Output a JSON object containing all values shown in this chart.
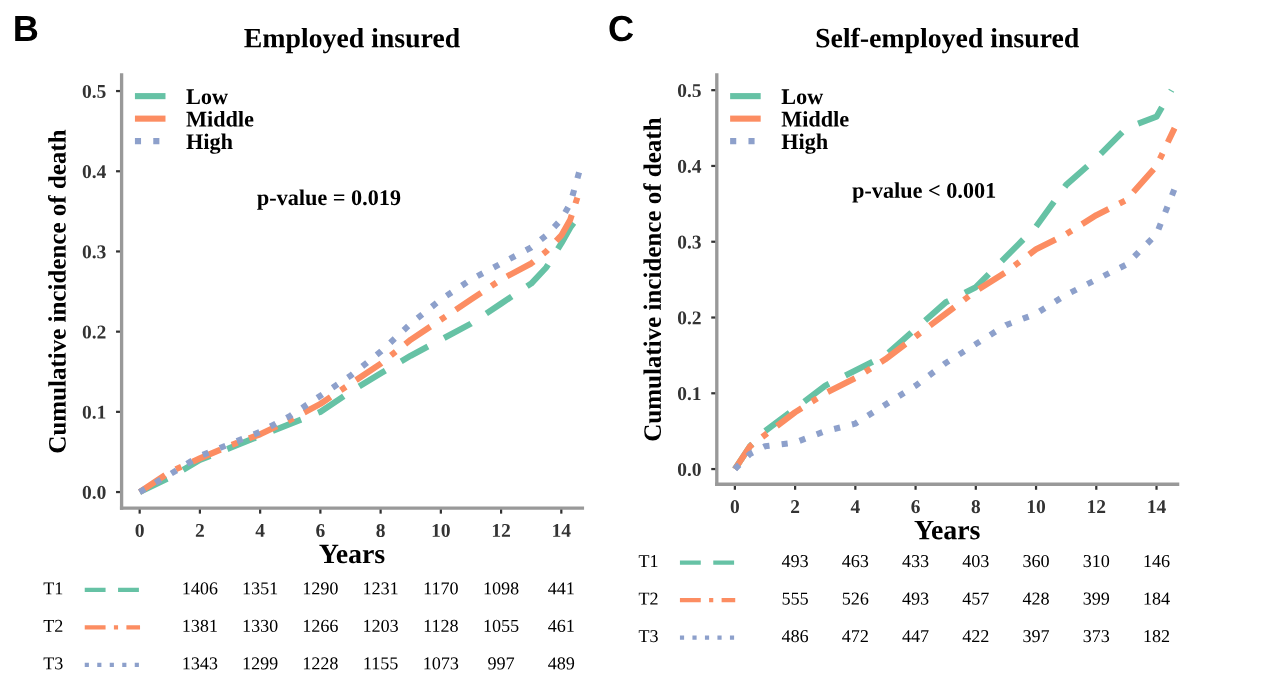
{
  "chart_data": [
    {
      "type": "line",
      "title": "Employed insured",
      "xlabel": "Years",
      "ylabel": "Cumulative incidence of death",
      "annotations": [
        "B",
        "p-value = 0.019",
        "T1",
        "1406",
        "1351",
        "1290",
        "1231",
        "1170",
        "1098",
        "441",
        "T2",
        "1381",
        "1330",
        "1266",
        "1203",
        "1128",
        "1055",
        "461",
        "T3",
        "1343",
        "1299",
        "1228",
        "1155",
        "1073",
        "997",
        "489"
      ],
      "x": [
        0,
        1,
        2,
        3,
        4,
        5,
        6,
        7,
        8,
        9,
        10,
        11,
        12,
        13,
        13.5,
        14,
        14.3,
        14.6
      ],
      "series": [
        {
          "name": "Low",
          "color": "#66c2a5",
          "line_style": "dashed",
          "values": [
            0,
            0.018,
            0.04,
            0.055,
            0.07,
            0.085,
            0.1,
            0.125,
            0.148,
            0.17,
            0.19,
            0.21,
            0.235,
            0.26,
            0.28,
            0.31,
            0.33,
            0.345
          ]
        },
        {
          "name": "Middle",
          "color": "#fc8d62",
          "line_style": "dashdot",
          "values": [
            0,
            0.025,
            0.042,
            0.058,
            0.072,
            0.09,
            0.11,
            0.135,
            0.16,
            0.19,
            0.215,
            0.24,
            0.265,
            0.285,
            0.3,
            0.32,
            0.34,
            0.375
          ]
        },
        {
          "name": "High",
          "color": "#8da0cb",
          "line_style": "dotted",
          "values": [
            0,
            0.022,
            0.045,
            0.06,
            0.075,
            0.095,
            0.12,
            0.145,
            0.175,
            0.21,
            0.24,
            0.265,
            0.285,
            0.305,
            0.32,
            0.34,
            0.36,
            0.4
          ]
        }
      ],
      "xlim": [
        -0.6,
        14.7
      ],
      "xticks": [
        0,
        2,
        4,
        6,
        8,
        10,
        12,
        14
      ],
      "ylim": [
        -0.02,
        0.52
      ],
      "yticks": [
        {
          "value": 0,
          "label": "0.0"
        },
        0.1,
        0.2,
        0.3,
        0.4,
        0.5
      ],
      "grid": false,
      "legend": "top left",
      "marker": "none"
    },
    {
      "type": "line",
      "title": "Self-employed insured",
      "xlabel": "Years",
      "ylabel": "Cumulative incidence of death",
      "annotations": [
        "C",
        "p-value < 0.001",
        "T1",
        "493",
        "463",
        "433",
        "403",
        "360",
        "310",
        "146",
        "T2",
        "555",
        "526",
        "493",
        "457",
        "428",
        "399",
        "184",
        "T3",
        "486",
        "472",
        "447",
        "422",
        "397",
        "373",
        "182"
      ],
      "x": [
        0,
        0.5,
        1,
        2,
        3,
        4,
        5,
        6,
        7,
        8,
        9,
        10,
        11,
        12,
        13,
        14,
        14.5
      ],
      "series": [
        {
          "name": "Low",
          "color": "#66c2a5",
          "line_style": "dashed",
          "values": [
            0,
            0.03,
            0.05,
            0.08,
            0.11,
            0.13,
            0.15,
            0.185,
            0.22,
            0.24,
            0.28,
            0.32,
            0.375,
            0.41,
            0.45,
            0.465,
            0.5
          ]
        },
        {
          "name": "Middle",
          "color": "#fc8d62",
          "line_style": "dashdot",
          "x": [
            0,
            0.5,
            1,
            2,
            3,
            4,
            5,
            6,
            7,
            8,
            9,
            10,
            11,
            12,
            13,
            14,
            14.6
          ],
          "values": [
            0,
            0.03,
            0.045,
            0.075,
            0.1,
            0.12,
            0.145,
            0.175,
            0.205,
            0.235,
            0.26,
            0.29,
            0.31,
            0.335,
            0.355,
            0.4,
            0.45
          ]
        },
        {
          "name": "High",
          "color": "#8da0cb",
          "line_style": "dotted",
          "x": [
            0,
            0.5,
            1,
            2,
            3,
            4,
            5,
            6,
            7,
            8,
            9,
            10,
            11,
            12,
            13,
            14,
            14.6
          ],
          "values": [
            0,
            0.02,
            0.03,
            0.035,
            0.05,
            0.06,
            0.085,
            0.11,
            0.14,
            0.165,
            0.19,
            0.205,
            0.23,
            0.25,
            0.27,
            0.31,
            0.37
          ]
        }
      ],
      "xlim": [
        -0.6,
        14.7
      ],
      "xticks": [
        0,
        2,
        4,
        6,
        8,
        10,
        12,
        14
      ],
      "ylim": [
        -0.02,
        0.52
      ],
      "yticks": [
        {
          "value": 0,
          "label": "0.0"
        },
        0.1,
        0.2,
        0.3,
        0.4,
        0.5
      ],
      "grid": false,
      "legend": "top left",
      "marker": "none"
    }
  ]
}
